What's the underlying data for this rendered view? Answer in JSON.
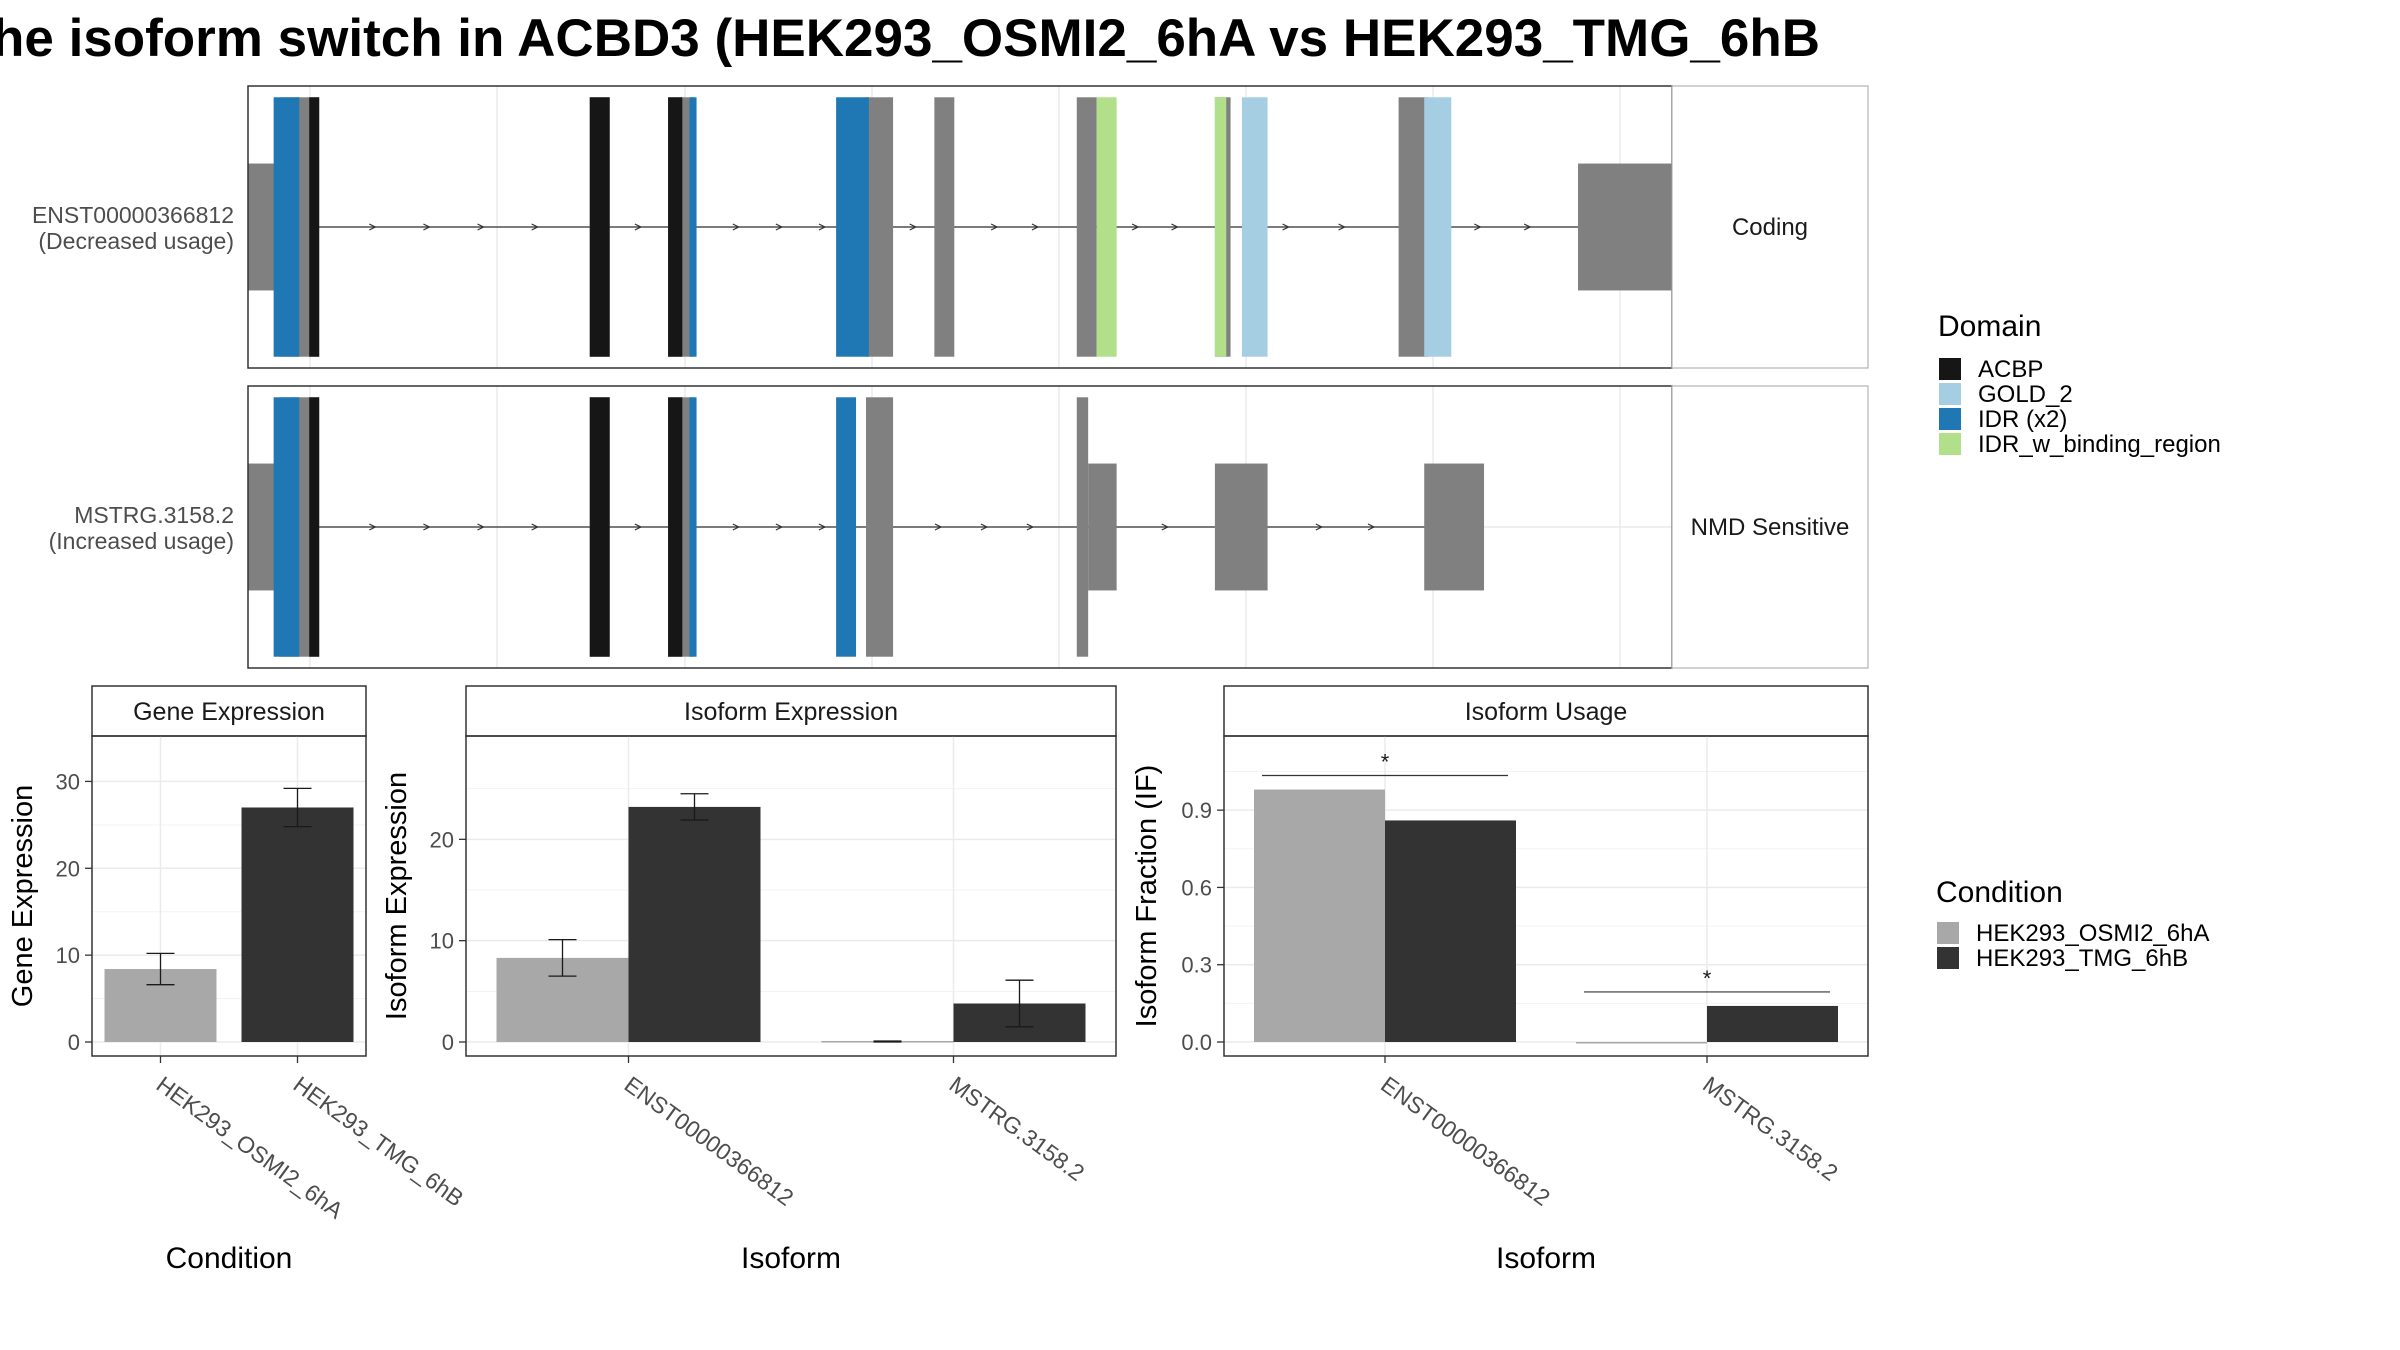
{
  "title": "he isoform switch in ACBD3 (HEK293_OSMI2_6hA vs HEK293_TMG_6hB",
  "colors": {
    "ACBP": "#161616",
    "GOLD_2": "#a6cee3",
    "IDR": "#1f78b4",
    "IDR_w_binding_region": "#b2df8a",
    "exon": "#808080",
    "condA": "#a8a8a8",
    "condB": "#333333"
  },
  "legend": {
    "domain_title": "Domain",
    "domain_items": [
      {
        "label": "ACBP",
        "color": "#161616"
      },
      {
        "label": "GOLD_2",
        "color": "#a6cee3"
      },
      {
        "label": "IDR (x2)",
        "color": "#1f78b4"
      },
      {
        "label": "IDR_w_binding_region",
        "color": "#b2df8a"
      }
    ],
    "condition_title": "Condition",
    "condition_items": [
      {
        "label": "HEK293_OSMI2_6hA",
        "color": "#a8a8a8"
      },
      {
        "label": "HEK293_TMG_6hB",
        "color": "#333333"
      }
    ]
  },
  "transcripts": [
    {
      "id": "ENST00000366812",
      "label2": "(Decreased usage)",
      "strip": "Coding"
    },
    {
      "id": "MSTRG.3158.2",
      "label2": "(Increased usage)",
      "strip": "NMD Sensitive"
    }
  ],
  "chart_data": [
    {
      "type": "bar",
      "title": "Gene Expression",
      "xlabel": "Condition",
      "ylabel": "Gene Expression",
      "categories": [
        "HEK293_OSMI2_6hA",
        "HEK293_TMG_6hB"
      ],
      "values": [
        8.4,
        27.0
      ],
      "error_low": [
        6.6,
        24.8
      ],
      "error_high": [
        10.2,
        29.2
      ],
      "ylim": [
        0,
        35
      ],
      "yticks": [
        0,
        10,
        20,
        30
      ]
    },
    {
      "type": "bar",
      "title": "Isoform Expression",
      "xlabel": "Isoform",
      "ylabel": "Isoform Expression",
      "categories": [
        "ENST00000366812",
        "MSTRG.3158.2"
      ],
      "series": [
        {
          "name": "HEK293_OSMI2_6hA",
          "values": [
            8.3,
            0.1
          ],
          "error_low": [
            6.5,
            0.0
          ],
          "error_high": [
            10.1,
            0.1
          ]
        },
        {
          "name": "HEK293_TMG_6hB",
          "values": [
            23.2,
            3.8
          ],
          "error_low": [
            21.9,
            1.5
          ],
          "error_high": [
            24.5,
            6.1
          ]
        }
      ],
      "ylim": [
        0,
        30
      ],
      "yticks": [
        0,
        10,
        20
      ]
    },
    {
      "type": "bar",
      "title": "Isoform Usage",
      "xlabel": "Isoform",
      "ylabel": "Isoform Fraction (IF)",
      "categories": [
        "ENST00000366812",
        "MSTRG.3158.2"
      ],
      "series": [
        {
          "name": "HEK293_OSMI2_6hA",
          "values": [
            0.98,
            0.0
          ]
        },
        {
          "name": "HEK293_TMG_6hB",
          "values": [
            0.86,
            0.14
          ]
        }
      ],
      "significance": [
        "*",
        "*"
      ],
      "ylim": [
        0,
        1.18
      ],
      "yticks": [
        "0.0",
        "0.3",
        "0.6",
        "0.9"
      ]
    }
  ],
  "gene_model": {
    "xlim": [
      0,
      1000
    ],
    "transcripts": [
      {
        "exons": [
          [
            0,
            22
          ],
          [
            22,
            50
          ],
          [
            240,
            254
          ],
          [
            295,
            313
          ],
          [
            434,
            453
          ],
          [
            482,
            496
          ],
          [
            582,
            596
          ],
          [
            679,
            690
          ],
          [
            808,
            829
          ],
          [
            934,
            1000
          ]
        ],
        "exon_height": [
          "s",
          "t",
          "t",
          "t",
          "t",
          "t",
          "t",
          "t",
          "t",
          "s"
        ],
        "domains": [
          {
            "type": "IDR",
            "range": [
              18,
              36
            ]
          },
          {
            "type": "ACBP",
            "range": [
              43,
              50
            ]
          },
          {
            "type": "ACBP",
            "range": [
              240,
              254
            ]
          },
          {
            "type": "ACBP",
            "range": [
              295,
              305
            ]
          },
          {
            "type": "IDR",
            "range": [
              310,
              315
            ]
          },
          {
            "type": "IDR",
            "range": [
              413,
              436
            ]
          },
          {
            "type": "IDR_w_binding_region",
            "range": [
              596,
              610
            ]
          },
          {
            "type": "IDR_w_binding_region",
            "range": [
              679,
              687
            ]
          },
          {
            "type": "GOLD_2",
            "range": [
              698,
              716
            ]
          },
          {
            "type": "GOLD_2",
            "range": [
              826,
              845
            ]
          }
        ]
      },
      {
        "exons": [
          [
            0,
            22
          ],
          [
            22,
            50
          ],
          [
            240,
            254
          ],
          [
            295,
            313
          ],
          [
            434,
            453
          ],
          [
            582,
            590
          ],
          [
            590,
            610
          ],
          [
            679,
            716
          ],
          [
            826,
            868
          ]
        ],
        "exon_height": [
          "s",
          "t",
          "t",
          "t",
          "t",
          "t",
          "s",
          "s",
          "s"
        ],
        "domains": [
          {
            "type": "IDR",
            "range": [
              18,
              36
            ]
          },
          {
            "type": "ACBP",
            "range": [
              43,
              50
            ]
          },
          {
            "type": "ACBP",
            "range": [
              240,
              254
            ]
          },
          {
            "type": "ACBP",
            "range": [
              295,
              305
            ]
          },
          {
            "type": "IDR",
            "range": [
              310,
              315
            ]
          },
          {
            "type": "IDR",
            "range": [
              413,
              427
            ]
          }
        ]
      }
    ]
  }
}
